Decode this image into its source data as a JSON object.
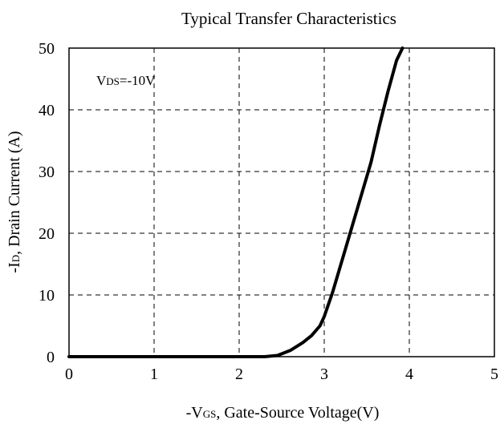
{
  "chart_data": {
    "type": "line",
    "title": "Typical Transfer Characteristics",
    "xlabel": {
      "prefix": "-V",
      "sub": "GS",
      "rest": ", Gate-Source Voltage(V)"
    },
    "ylabel": {
      "prefix": "-I",
      "sub": "D",
      "rest": ", Drain Current (A)"
    },
    "xlim": [
      0,
      5
    ],
    "ylim": [
      0,
      50
    ],
    "x_ticks": [
      "0",
      "1",
      "2",
      "3",
      "4",
      "5"
    ],
    "y_ticks": [
      "0",
      "10",
      "20",
      "30",
      "40",
      "50"
    ],
    "grid": true,
    "annotation": {
      "prefix": "V",
      "sub": "DS",
      "rest": "=-10V"
    },
    "series": [
      {
        "x": [
          0,
          1.0,
          2.0,
          2.3,
          2.45,
          2.6,
          2.75,
          2.85,
          2.95,
          3.0,
          3.1,
          3.25,
          3.4,
          3.55,
          3.65,
          3.75,
          3.85,
          3.92
        ],
        "y": [
          0,
          0,
          0,
          0,
          0.2,
          1.0,
          2.3,
          3.4,
          5.0,
          6.5,
          10.5,
          17.5,
          24.5,
          31.5,
          37.5,
          43.0,
          48.0,
          50.0
        ]
      }
    ]
  }
}
